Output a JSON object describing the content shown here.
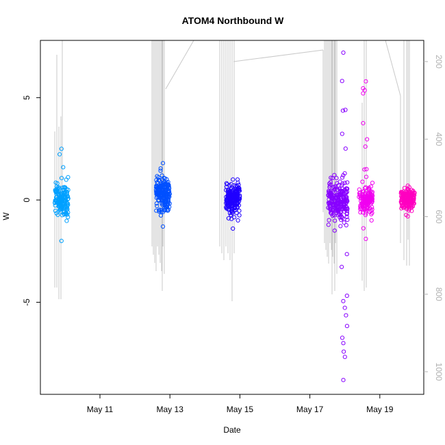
{
  "chart_data": {
    "type": "scatter",
    "title": "ATOM4 Northbound W",
    "xlabel": "Date",
    "ylabel": "W",
    "x_tick_labels": [
      "May 11",
      "May 13",
      "May 15",
      "May 17",
      "May 19"
    ],
    "y_ticks": [
      -5,
      0,
      5
    ],
    "y_tick_labels": [
      "-5",
      "0",
      "5"
    ],
    "ylim": [
      -9.5,
      7.8
    ],
    "right_axis": {
      "label": "",
      "ticks": [
        200,
        400,
        600,
        800,
        1000
      ],
      "tick_labels": [
        "200",
        "400",
        "600",
        "800",
        "1000"
      ],
      "color": "#b0b0b0"
    },
    "series": [
      {
        "color": "#00a0ff",
        "date": "May 9.9",
        "center": 0.0,
        "spread": 1.2,
        "min": -2.0,
        "max": 2.5,
        "count": 160
      },
      {
        "color": "#0050ff",
        "date": "May 12.8",
        "center": 0.3,
        "spread": 1.1,
        "min": -1.3,
        "max": 1.8,
        "count": 200
      },
      {
        "color": "#2000ff",
        "date": "May 14.8",
        "center": 0.0,
        "spread": 1.0,
        "min": -1.4,
        "max": 1.0,
        "count": 200
      },
      {
        "color": "#8800ff",
        "date": "May 17.8",
        "center": -0.1,
        "spread": 1.4,
        "min": -8.8,
        "max": 7.2,
        "count": 220
      },
      {
        "color": "#f000f0",
        "date": "May 18.6",
        "center": 0.0,
        "spread": 1.0,
        "min": -1.9,
        "max": 5.8,
        "count": 140
      },
      {
        "color": "#ff00c0",
        "date": "May 19.8",
        "center": 0.0,
        "spread": 0.8,
        "min": -0.8,
        "max": 0.7,
        "count": 160
      }
    ],
    "grid": false,
    "legend": "none"
  }
}
